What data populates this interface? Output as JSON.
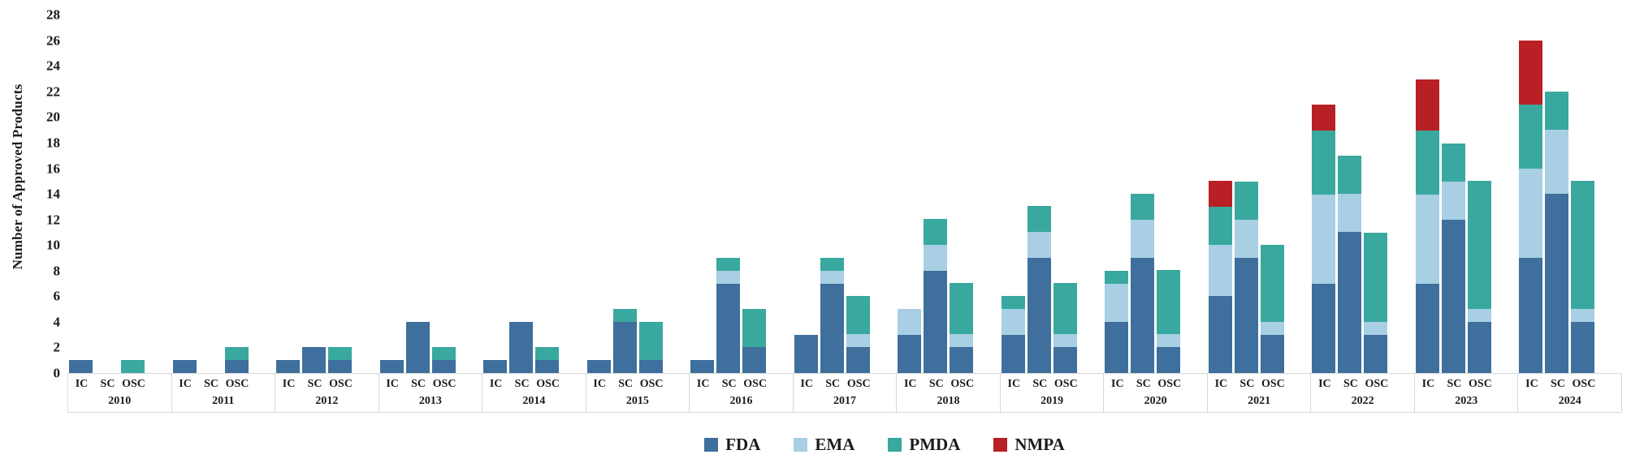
{
  "chart_data": {
    "type": "bar",
    "stacked": true,
    "title": "",
    "xlabel": "",
    "ylabel": "Number of Approved Products",
    "ylim": [
      0,
      28
    ],
    "ytick_step": 2,
    "yticks": [
      0,
      2,
      4,
      6,
      8,
      10,
      12,
      14,
      16,
      18,
      20,
      22,
      24,
      26,
      28
    ],
    "grid": false,
    "legend_position": "bottom-center",
    "columns": [
      "IC",
      "SC",
      "OSC"
    ],
    "series_order": [
      "FDA",
      "EMA",
      "PMDA",
      "NMPA"
    ],
    "series_colors": {
      "FDA": "#3f6f9c",
      "EMA": "#a8cfe4",
      "PMDA": "#39a89e",
      "NMPA": "#b82025"
    },
    "legend": [
      {
        "name": "FDA",
        "color": "#3f6f9c"
      },
      {
        "name": "EMA",
        "color": "#a8cfe4"
      },
      {
        "name": "PMDA",
        "color": "#39a89e"
      },
      {
        "name": "NMPA",
        "color": "#b82025"
      }
    ],
    "years": [
      {
        "label": "2010",
        "IC": [
          1,
          0,
          0,
          0
        ],
        "SC": [
          0,
          0,
          0,
          0
        ],
        "OSC": [
          0,
          0,
          1,
          0
        ]
      },
      {
        "label": "2011",
        "IC": [
          1,
          0,
          0,
          0
        ],
        "SC": [
          0,
          0,
          0,
          0
        ],
        "OSC": [
          1,
          0,
          1,
          0
        ]
      },
      {
        "label": "2012",
        "IC": [
          1,
          0,
          0,
          0
        ],
        "SC": [
          2,
          0,
          0,
          0
        ],
        "OSC": [
          1,
          0,
          1,
          0
        ]
      },
      {
        "label": "2013",
        "IC": [
          1,
          0,
          0,
          0
        ],
        "SC": [
          4,
          0,
          0,
          0
        ],
        "OSC": [
          1,
          0,
          1,
          0
        ]
      },
      {
        "label": "2014",
        "IC": [
          1,
          0,
          0,
          0
        ],
        "SC": [
          4,
          0,
          0,
          0
        ],
        "OSC": [
          1,
          0,
          1,
          0
        ]
      },
      {
        "label": "2015",
        "IC": [
          1,
          0,
          0,
          0
        ],
        "SC": [
          4,
          0,
          1,
          0
        ],
        "OSC": [
          1,
          0,
          3,
          0
        ]
      },
      {
        "label": "2016",
        "IC": [
          1,
          0,
          0,
          0
        ],
        "SC": [
          7,
          1,
          1,
          0
        ],
        "OSC": [
          2,
          0,
          3,
          0
        ]
      },
      {
        "label": "2017",
        "IC": [
          3,
          0,
          0,
          0
        ],
        "SC": [
          7,
          1,
          1,
          0
        ],
        "OSC": [
          2,
          1,
          3,
          0
        ]
      },
      {
        "label": "2018",
        "IC": [
          3,
          2,
          0,
          0
        ],
        "SC": [
          8,
          2,
          2,
          0
        ],
        "OSC": [
          2,
          1,
          4,
          0
        ]
      },
      {
        "label": "2019",
        "IC": [
          3,
          2,
          1,
          0
        ],
        "SC": [
          9,
          2,
          2,
          0
        ],
        "OSC": [
          2,
          1,
          4,
          0
        ]
      },
      {
        "label": "2020",
        "IC": [
          4,
          3,
          1,
          0
        ],
        "SC": [
          9,
          3,
          2,
          0
        ],
        "OSC": [
          2,
          1,
          5,
          0
        ]
      },
      {
        "label": "2021",
        "IC": [
          6,
          4,
          3,
          2
        ],
        "SC": [
          9,
          3,
          3,
          0
        ],
        "OSC": [
          3,
          1,
          6,
          0
        ]
      },
      {
        "label": "2022",
        "IC": [
          7,
          7,
          5,
          2
        ],
        "SC": [
          11,
          3,
          3,
          0
        ],
        "OSC": [
          3,
          1,
          7,
          0
        ]
      },
      {
        "label": "2023",
        "IC": [
          7,
          7,
          5,
          4
        ],
        "SC": [
          12,
          3,
          3,
          0
        ],
        "OSC": [
          4,
          1,
          10,
          0
        ]
      },
      {
        "label": "2024",
        "IC": [
          9,
          7,
          5,
          5
        ],
        "SC": [
          14,
          5,
          3,
          0
        ],
        "OSC": [
          4,
          1,
          10,
          0
        ]
      }
    ]
  }
}
